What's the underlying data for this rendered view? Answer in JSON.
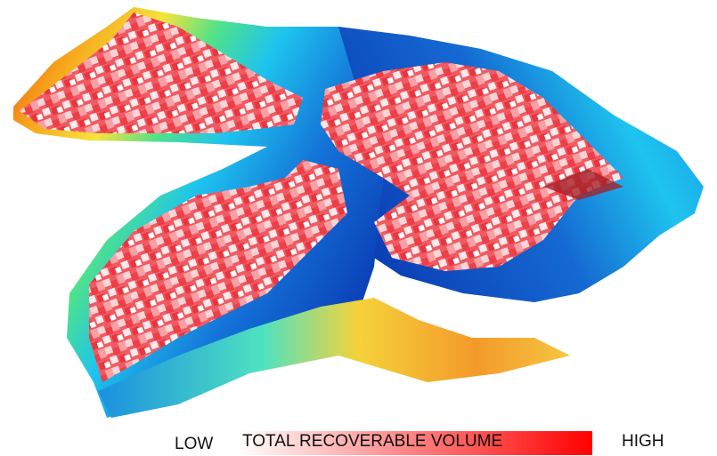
{
  "legend": {
    "low": "LOW",
    "title": "TOTAL RECOVERABLE VOLUME",
    "high": "HIGH"
  }
}
